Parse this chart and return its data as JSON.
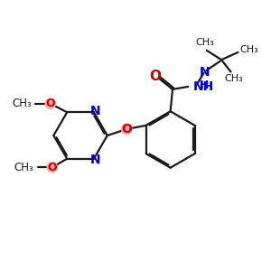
{
  "bg_color": "#ffffff",
  "bond_color": "#1a1a1a",
  "blue_color": "#0000cc",
  "red_color": "#cc0000",
  "pink_color": "#ffaaaa",
  "lw": 1.6,
  "dbo": 0.055,
  "shorten": 0.12,
  "figsize": [
    3.0,
    3.0
  ],
  "dpi": 100,
  "xlim": [
    0,
    10
  ],
  "ylim": [
    0,
    10
  ]
}
